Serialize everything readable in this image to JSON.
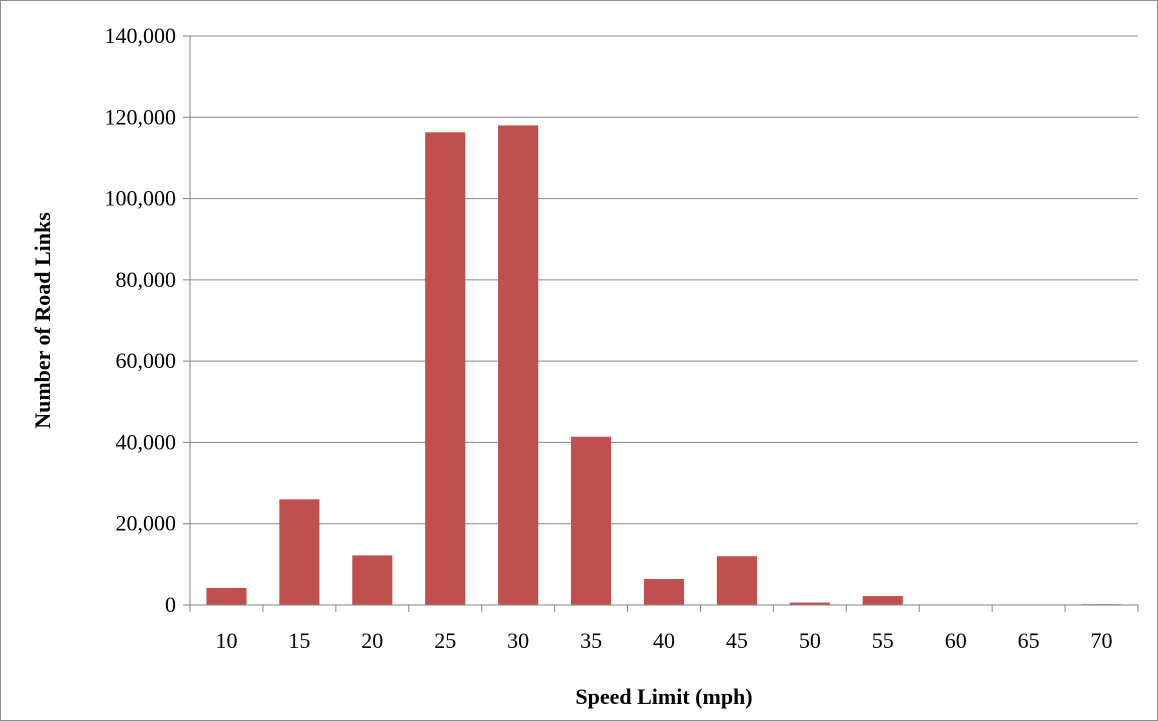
{
  "chart_data": {
    "type": "bar",
    "title": "",
    "xlabel": "Speed Limit (mph)",
    "ylabel": "Number of Road Links",
    "categories": [
      "10",
      "15",
      "20",
      "25",
      "30",
      "35",
      "40",
      "45",
      "50",
      "55",
      "60",
      "65",
      "70"
    ],
    "values": [
      4200,
      26000,
      12200,
      116300,
      118000,
      41400,
      6400,
      12000,
      600,
      2200,
      0,
      0,
      200
    ],
    "ylim": [
      0,
      140000
    ],
    "yticks": [
      0,
      20000,
      40000,
      60000,
      80000,
      100000,
      120000,
      140000
    ],
    "ytick_labels": [
      "0",
      "20,000",
      "40,000",
      "60,000",
      "80,000",
      "100,000",
      "120,000",
      "140,000"
    ],
    "grid": true,
    "legend": "none",
    "colors": {
      "bar": "#c0504d",
      "grid": "#868686",
      "axis": "#868686"
    }
  }
}
